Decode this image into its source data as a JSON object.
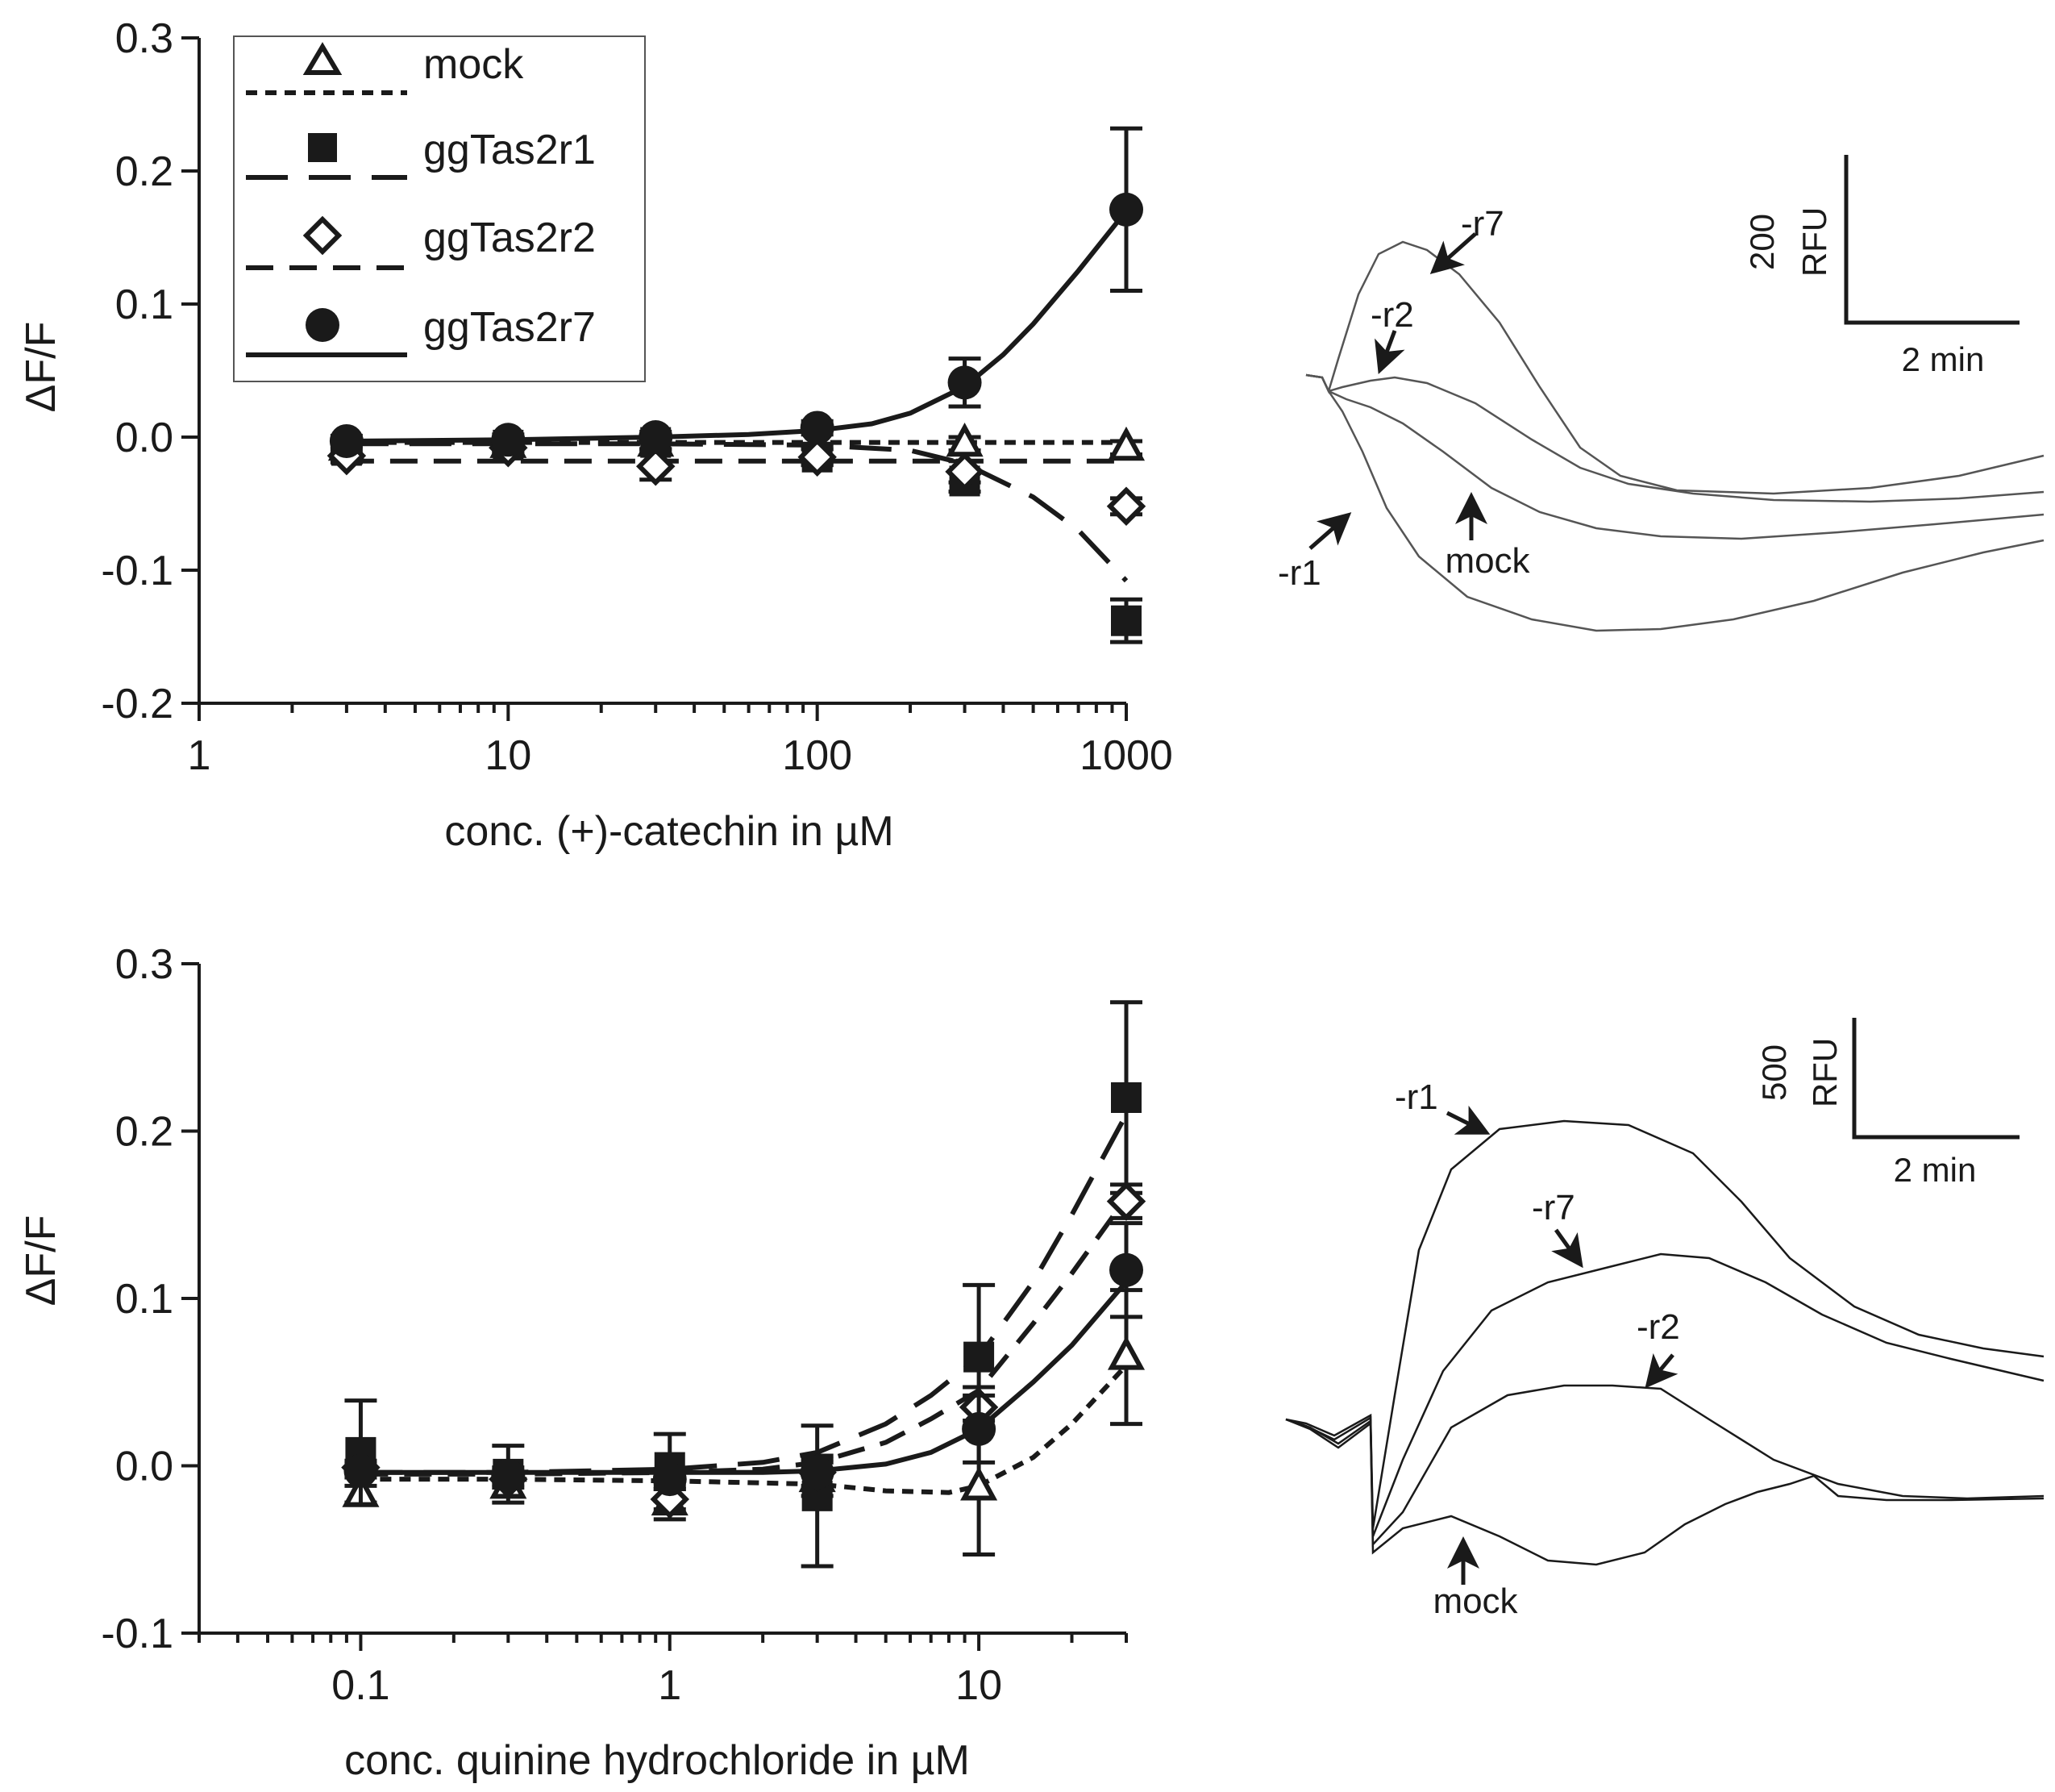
{
  "chart_data": [
    {
      "type": "scatter",
      "id": "catechin",
      "xscale": "log",
      "xlim": [
        1,
        1000
      ],
      "ylim": [
        -0.2,
        0.3
      ],
      "xticks": [
        1,
        10,
        100,
        1000
      ],
      "xtick_labels": [
        "1",
        "10",
        "100",
        "1000"
      ],
      "yticks": [
        -0.2,
        -0.1,
        0.0,
        0.1,
        0.2,
        0.3
      ],
      "ytick_labels": [
        "-0.2",
        "-0.1",
        "0.0",
        "0.1",
        "0.2",
        "0.3"
      ],
      "xlabel": "conc. (+)-catechin in µM",
      "ylabel": "ΔF/F",
      "legend_position": "top-left",
      "series": [
        {
          "name": "mock",
          "marker": "triangle-open",
          "line": "dotted",
          "x": [
            3,
            10,
            30,
            100,
            300,
            1000
          ],
          "y": [
            -0.008,
            -0.006,
            -0.005,
            -0.01,
            -0.005,
            -0.008
          ],
          "err": [
            0.004,
            0.004,
            0.004,
            0.004,
            0.005,
            0.005
          ],
          "fit_x": [
            3,
            1000
          ],
          "fit_y": [
            -0.004,
            -0.004
          ]
        },
        {
          "name": "ggTas2r1",
          "marker": "square-filled",
          "line": "long-dash",
          "x": [
            3,
            10,
            30,
            100,
            300,
            1000
          ],
          "y": [
            -0.01,
            -0.006,
            -0.004,
            -0.015,
            -0.033,
            -0.138
          ],
          "err": [
            0.005,
            0.005,
            0.005,
            0.006,
            0.008,
            0.016
          ],
          "fit_x": [
            3,
            30,
            100,
            200,
            300,
            500,
            700,
            1000
          ],
          "fit_y": [
            -0.005,
            -0.005,
            -0.006,
            -0.01,
            -0.02,
            -0.045,
            -0.07,
            -0.108
          ]
        },
        {
          "name": "ggTas2r2",
          "marker": "diamond-open",
          "line": "dashed",
          "x": [
            3,
            10,
            30,
            100,
            300,
            1000
          ],
          "y": [
            -0.014,
            -0.008,
            -0.022,
            -0.015,
            -0.026,
            -0.052
          ],
          "err": [
            0.005,
            0.005,
            0.01,
            0.006,
            0.008,
            0.006
          ],
          "fit_x": [
            3,
            1000
          ],
          "fit_y": [
            -0.018,
            -0.018
          ]
        },
        {
          "name": "ggTas2r7",
          "marker": "circle-filled",
          "line": "solid",
          "x": [
            3,
            10,
            30,
            100,
            300,
            1000
          ],
          "y": [
            -0.003,
            -0.002,
            0.0,
            0.007,
            0.041,
            0.171
          ],
          "err": [
            0.004,
            0.004,
            0.004,
            0.005,
            0.018,
            0.061
          ],
          "fit_x": [
            3,
            10,
            30,
            60,
            100,
            150,
            200,
            300,
            400,
            500,
            700,
            1000
          ],
          "fit_y": [
            -0.003,
            -0.002,
            0.0,
            0.002,
            0.005,
            0.01,
            0.018,
            0.038,
            0.062,
            0.085,
            0.125,
            0.17
          ]
        }
      ]
    },
    {
      "type": "scatter",
      "id": "quinine",
      "xscale": "log",
      "xlim": [
        0.03,
        30
      ],
      "ylim": [
        -0.1,
        0.3
      ],
      "xticks": [
        0.1,
        1,
        10
      ],
      "xtick_labels": [
        "0.1",
        "1",
        "10"
      ],
      "yticks": [
        -0.1,
        0.0,
        0.1,
        0.2,
        0.3
      ],
      "ytick_labels": [
        "-0.1",
        "0.0",
        "0.1",
        "0.2",
        "0.3"
      ],
      "xlabel": "conc. quinine hydrochloride in µM",
      "ylabel": "ΔF/F",
      "series": [
        {
          "name": "mock",
          "marker": "triangle-open",
          "line": "dotted",
          "x": [
            0.1,
            0.3,
            1,
            3,
            10,
            30
          ],
          "y": [
            -0.017,
            -0.012,
            -0.022,
            -0.008,
            -0.013,
            0.065
          ],
          "err": [
            0.005,
            0.006,
            0.01,
            0.01,
            0.04,
            0.04
          ],
          "fit_x": [
            0.1,
            0.3,
            1,
            3,
            5,
            8,
            10,
            15,
            20,
            30
          ],
          "fit_y": [
            -0.008,
            -0.008,
            -0.009,
            -0.011,
            -0.015,
            -0.016,
            -0.012,
            0.005,
            0.025,
            0.06
          ]
        },
        {
          "name": "ggTas2r1",
          "marker": "square-filled",
          "line": "long-dash",
          "x": [
            0.1,
            0.3,
            1,
            3,
            10,
            30
          ],
          "y": [
            0.008,
            -0.005,
            -0.001,
            -0.018,
            0.065,
            0.22
          ],
          "err": [
            0.031,
            0.017,
            0.02,
            0.042,
            0.043,
            0.057
          ],
          "fit_x": [
            0.1,
            0.3,
            1,
            2,
            3,
            5,
            7,
            10,
            15,
            20,
            30
          ],
          "fit_y": [
            -0.004,
            -0.004,
            -0.002,
            0.002,
            0.008,
            0.025,
            0.042,
            0.065,
            0.11,
            0.15,
            0.21
          ]
        },
        {
          "name": "ggTas2r2",
          "marker": "diamond-open",
          "line": "dashed",
          "x": [
            0.1,
            0.3,
            1,
            3,
            10,
            30
          ],
          "y": [
            -0.001,
            -0.008,
            -0.02,
            -0.004,
            0.035,
            0.158
          ],
          "err": [
            0.004,
            0.005,
            0.006,
            0.01,
            0.012,
            0.01
          ],
          "fit_x": [
            0.1,
            0.3,
            1,
            2,
            3,
            5,
            7,
            10,
            15,
            20,
            30
          ],
          "fit_y": [
            -0.005,
            -0.005,
            -0.004,
            -0.002,
            0.002,
            0.014,
            0.028,
            0.045,
            0.085,
            0.115,
            0.16
          ]
        },
        {
          "name": "ggTas2r7",
          "marker": "circle-filled",
          "line": "solid",
          "x": [
            0.1,
            0.3,
            1,
            3,
            10,
            30
          ],
          "y": [
            -0.003,
            -0.006,
            -0.008,
            -0.004,
            0.022,
            0.117
          ],
          "err": [
            0.004,
            0.005,
            0.006,
            0.008,
            0.02,
            0.028
          ],
          "fit_x": [
            0.1,
            0.3,
            1,
            2,
            3,
            5,
            7,
            10,
            15,
            20,
            30
          ],
          "fit_y": [
            -0.004,
            -0.004,
            -0.004,
            -0.004,
            -0.003,
            0.001,
            0.008,
            0.022,
            0.05,
            0.072,
            0.11
          ]
        }
      ]
    }
  ],
  "traces_top": {
    "scale_value": "200",
    "scale_unit": "RFU",
    "time_label": "2 min",
    "labels": {
      "r7": "-r7",
      "r2": "-r2",
      "r1": "-r1",
      "mock": "mock"
    }
  },
  "traces_bottom": {
    "scale_value": "500",
    "scale_unit": "RFU",
    "time_label": "2 min",
    "labels": {
      "r1": "-r1",
      "r7": "-r7",
      "r2": "-r2",
      "mock": "mock"
    }
  }
}
